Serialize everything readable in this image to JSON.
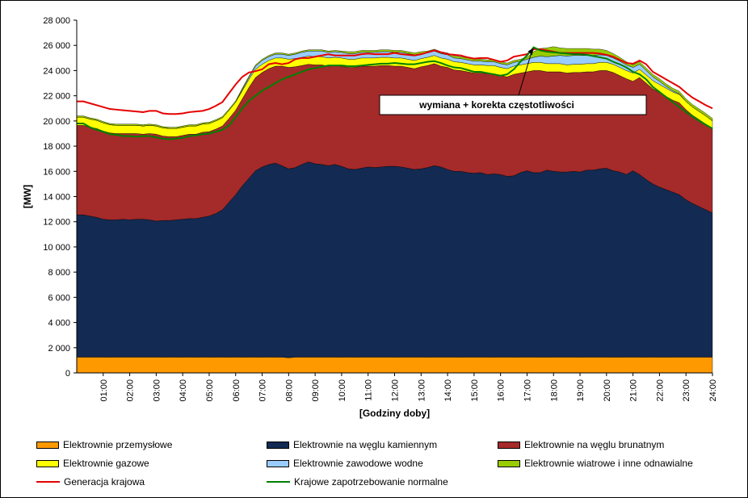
{
  "chart_data": {
    "type": "area",
    "xlabel": "[Godziny doby]",
    "ylabel": "[MW]",
    "ylim": [
      0,
      28000
    ],
    "yticks": [
      0,
      2000,
      4000,
      6000,
      8000,
      10000,
      12000,
      14000,
      16000,
      18000,
      20000,
      22000,
      24000,
      26000,
      28000
    ],
    "ytick_labels": [
      "0",
      "2 000",
      "4 000",
      "6 000",
      "8 000",
      "10 000",
      "12 000",
      "14 000",
      "16 000",
      "18 000",
      "20 000",
      "22 000",
      "24 000",
      "26 000",
      "28 000"
    ],
    "xtick_labels": [
      "01:00",
      "02:00",
      "03:00",
      "04:00",
      "05:00",
      "06:00",
      "07:00",
      "08:00",
      "09:00",
      "10:00",
      "11:00",
      "12:00",
      "13:00",
      "14:00",
      "15:00",
      "16:00",
      "17:00",
      "18:00",
      "19:00",
      "20:00",
      "21:00",
      "22:00",
      "23:00",
      "24:00"
    ],
    "x": [
      0.25,
      0.5,
      0.75,
      1.0,
      1.25,
      1.5,
      1.75,
      2.0,
      2.25,
      2.5,
      2.75,
      3.0,
      3.25,
      3.5,
      3.75,
      4.0,
      4.25,
      4.5,
      4.75,
      5.0,
      5.25,
      5.5,
      5.75,
      6.0,
      6.25,
      6.5,
      6.75,
      7.0,
      7.25,
      7.5,
      7.75,
      8.0,
      8.25,
      8.5,
      8.75,
      9.0,
      9.25,
      9.5,
      9.75,
      10.0,
      10.25,
      10.5,
      10.75,
      11.0,
      11.25,
      11.5,
      11.75,
      12.0,
      12.25,
      12.5,
      12.75,
      13.0,
      13.25,
      13.5,
      13.75,
      14.0,
      14.25,
      14.5,
      14.75,
      15.0,
      15.25,
      15.5,
      15.75,
      16.0,
      16.25,
      16.5,
      16.75,
      17.0,
      17.25,
      17.5,
      17.75,
      18.0,
      18.25,
      18.5,
      18.75,
      19.0,
      19.25,
      19.5,
      19.75,
      20.0,
      20.25,
      20.5,
      20.75,
      21.0,
      21.25,
      21.5,
      21.75,
      22.0,
      22.25,
      22.5,
      22.75,
      23.0,
      23.25,
      23.5,
      23.75,
      24.0
    ],
    "series": [
      {
        "name": "Elektrownie przemysłowe",
        "color": "#ff9900",
        "values": [
          1250,
          1250,
          1250,
          1250,
          1250,
          1250,
          1250,
          1250,
          1250,
          1250,
          1250,
          1250,
          1250,
          1250,
          1250,
          1250,
          1250,
          1250,
          1250,
          1250,
          1250,
          1250,
          1250,
          1250,
          1250,
          1250,
          1250,
          1250,
          1250,
          1250,
          1250,
          1200,
          1250,
          1250,
          1250,
          1250,
          1250,
          1250,
          1250,
          1250,
          1250,
          1250,
          1250,
          1250,
          1250,
          1250,
          1250,
          1250,
          1250,
          1250,
          1250,
          1250,
          1250,
          1250,
          1250,
          1250,
          1250,
          1250,
          1250,
          1250,
          1250,
          1250,
          1250,
          1250,
          1250,
          1250,
          1250,
          1250,
          1250,
          1250,
          1250,
          1250,
          1250,
          1250,
          1250,
          1250,
          1250,
          1250,
          1250,
          1250,
          1250,
          1250,
          1250,
          1250,
          1250,
          1250,
          1250,
          1250,
          1250,
          1250,
          1250,
          1250,
          1250,
          1250,
          1250,
          1250
        ]
      },
      {
        "name": "Elektrownie na węglu kamiennym",
        "color": "#132a52",
        "values": [
          11300,
          11200,
          11100,
          10950,
          10900,
          10900,
          10950,
          10900,
          10950,
          10950,
          10900,
          10800,
          10850,
          10850,
          10900,
          10950,
          11000,
          11000,
          11100,
          11200,
          11400,
          11700,
          12300,
          12900,
          13600,
          14200,
          14800,
          15100,
          15300,
          15400,
          15200,
          15000,
          15050,
          15300,
          15500,
          15350,
          15300,
          15200,
          15300,
          15150,
          14950,
          14900,
          15000,
          15100,
          15050,
          15100,
          15150,
          15150,
          15100,
          15000,
          14900,
          14950,
          15050,
          15200,
          15100,
          14900,
          14750,
          14750,
          14650,
          14600,
          14650,
          14500,
          14550,
          14500,
          14350,
          14400,
          14650,
          14800,
          14650,
          14650,
          14850,
          14750,
          14700,
          14700,
          14750,
          14700,
          14850,
          14850,
          14950,
          15000,
          14800,
          14700,
          14500,
          14800,
          14500,
          14100,
          13750,
          13500,
          13300,
          13100,
          12900,
          12500,
          12200,
          11950,
          11700,
          11450
        ]
      },
      {
        "name": "Elektrownie na węglu brunatnym",
        "color": "#a52a2a",
        "values": [
          7100,
          7050,
          7050,
          7000,
          6900,
          6850,
          6800,
          6850,
          6800,
          6750,
          6850,
          6900,
          6700,
          6650,
          6600,
          6650,
          6700,
          6700,
          6750,
          6700,
          6700,
          6650,
          6650,
          6700,
          6900,
          7200,
          7400,
          7500,
          7600,
          7700,
          7900,
          8050,
          8000,
          7850,
          7750,
          7850,
          7900,
          7900,
          7850,
          7950,
          8050,
          8100,
          8100,
          8000,
          8050,
          8050,
          8000,
          7950,
          8000,
          8000,
          8000,
          8100,
          8100,
          8100,
          8000,
          8100,
          8050,
          8000,
          8000,
          7950,
          7900,
          8000,
          7950,
          7850,
          7900,
          8050,
          7900,
          7850,
          8100,
          8100,
          7800,
          7900,
          7950,
          7850,
          7850,
          7900,
          7800,
          7800,
          7800,
          7750,
          7800,
          7650,
          7600,
          7100,
          7700,
          7650,
          7550,
          7500,
          7400,
          7300,
          7300,
          7150,
          7000,
          6900,
          6800,
          6650
        ]
      },
      {
        "name": "Elektrownie gazowe",
        "color": "#ffff00",
        "values": [
          650,
          650,
          650,
          650,
          650,
          650,
          650,
          650,
          650,
          650,
          650,
          650,
          650,
          650,
          650,
          650,
          650,
          650,
          650,
          650,
          650,
          650,
          650,
          650,
          650,
          650,
          650,
          650,
          650,
          650,
          650,
          650,
          650,
          650,
          650,
          650,
          650,
          650,
          650,
          650,
          650,
          650,
          650,
          650,
          650,
          650,
          650,
          650,
          650,
          650,
          650,
          650,
          650,
          650,
          650,
          650,
          650,
          650,
          650,
          650,
          650,
          650,
          650,
          650,
          650,
          650,
          650,
          650,
          650,
          650,
          650,
          650,
          650,
          650,
          650,
          650,
          650,
          650,
          650,
          650,
          650,
          650,
          650,
          650,
          650,
          650,
          650,
          650,
          650,
          650,
          650,
          650,
          650,
          650,
          650,
          650
        ]
      },
      {
        "name": "Elektrownie zawodowe wodne",
        "color": "#99ccff",
        "values": [
          0,
          0,
          0,
          0,
          0,
          0,
          0,
          0,
          0,
          0,
          0,
          0,
          0,
          0,
          0,
          0,
          0,
          0,
          0,
          0,
          0,
          0,
          0,
          0,
          100,
          150,
          250,
          300,
          300,
          300,
          300,
          300,
          350,
          400,
          400,
          450,
          450,
          450,
          450,
          450,
          450,
          450,
          450,
          450,
          450,
          450,
          450,
          450,
          450,
          450,
          450,
          400,
          350,
          350,
          350,
          350,
          300,
          300,
          300,
          300,
          300,
          300,
          300,
          300,
          300,
          300,
          300,
          350,
          400,
          500,
          550,
          600,
          650,
          700,
          700,
          700,
          650,
          650,
          600,
          550,
          500,
          500,
          450,
          450,
          400,
          350,
          300,
          250,
          150,
          100,
          50,
          0,
          0,
          0,
          0,
          0
        ]
      },
      {
        "name": "Elektrownie wiatrowe i inne odnawialne",
        "color": "#99cc00",
        "values": [
          100,
          100,
          100,
          100,
          100,
          100,
          100,
          100,
          100,
          100,
          100,
          100,
          100,
          100,
          100,
          100,
          100,
          100,
          100,
          100,
          100,
          100,
          100,
          100,
          100,
          100,
          100,
          100,
          100,
          100,
          100,
          100,
          100,
          100,
          100,
          100,
          100,
          100,
          100,
          100,
          150,
          150,
          150,
          150,
          150,
          150,
          150,
          150,
          150,
          150,
          150,
          150,
          150,
          150,
          150,
          150,
          150,
          150,
          150,
          150,
          150,
          150,
          150,
          150,
          150,
          150,
          150,
          150,
          450,
          600,
          700,
          750,
          600,
          600,
          550,
          550,
          550,
          500,
          450,
          400,
          350,
          300,
          250,
          200,
          200,
          200,
          200,
          200,
          200,
          200,
          200,
          200,
          200,
          200,
          200,
          200
        ]
      }
    ],
    "lines": [
      {
        "name": "Generacja krajowa",
        "color": "#e60000",
        "values": [
          21550,
          21400,
          21250,
          21100,
          20950,
          20900,
          20850,
          20800,
          20750,
          20700,
          20800,
          20800,
          20600,
          20550,
          20550,
          20600,
          20700,
          20750,
          20800,
          20950,
          21200,
          21500,
          22200,
          22900,
          23500,
          23850,
          23950,
          24100,
          24500,
          24600,
          24500,
          24600,
          24900,
          25000,
          25000,
          25100,
          25200,
          25300,
          25200,
          25200,
          25200,
          25200,
          25300,
          25350,
          25300,
          25300,
          25300,
          25400,
          25300,
          25250,
          25200,
          25300,
          25450,
          25600,
          25450,
          25300,
          25250,
          25200,
          25050,
          24950,
          25000,
          25000,
          24850,
          24700,
          24800,
          25100,
          25200,
          25300,
          25700,
          25700,
          25600,
          25500,
          25400,
          25400,
          25400,
          25400,
          25400,
          25400,
          25350,
          25250,
          25100,
          24850,
          24600,
          24550,
          24800,
          24500,
          23900,
          23600,
          23300,
          23000,
          22700,
          22250,
          21850,
          21550,
          21250,
          21000
        ]
      },
      {
        "name": "Krajowe zapotrzebowanie normalne",
        "color": "#008000",
        "values": [
          19800,
          19500,
          19300,
          19150,
          18950,
          18900,
          18800,
          18800,
          18750,
          18800,
          18800,
          18700,
          18600,
          18550,
          18600,
          18650,
          18800,
          18850,
          18950,
          19000,
          19150,
          19300,
          19650,
          20300,
          21000,
          21600,
          22000,
          22400,
          22700,
          23000,
          23300,
          23500,
          23700,
          23900,
          24100,
          24200,
          24300,
          24400,
          24400,
          24400,
          24350,
          24350,
          24400,
          24450,
          24500,
          24550,
          24550,
          24600,
          24550,
          24500,
          24500,
          24600,
          24700,
          24750,
          24600,
          24400,
          24250,
          24200,
          24050,
          23900,
          23900,
          23800,
          23700,
          23600,
          23700,
          24100,
          24700,
          25200,
          25850,
          25600,
          25500,
          25450,
          25400,
          25350,
          25300,
          25300,
          25250,
          25150,
          25050,
          24950,
          24700,
          24500,
          24250,
          23900,
          23700,
          23300,
          22700,
          22300,
          21900,
          21500,
          21100,
          20700,
          20350,
          20000,
          19700,
          19400
        ]
      }
    ],
    "annotation": "wymiana + korekta częstotliwości",
    "annotation_target": [
      17.25,
      25850
    ],
    "legend_position": "bottom",
    "grid": false
  }
}
